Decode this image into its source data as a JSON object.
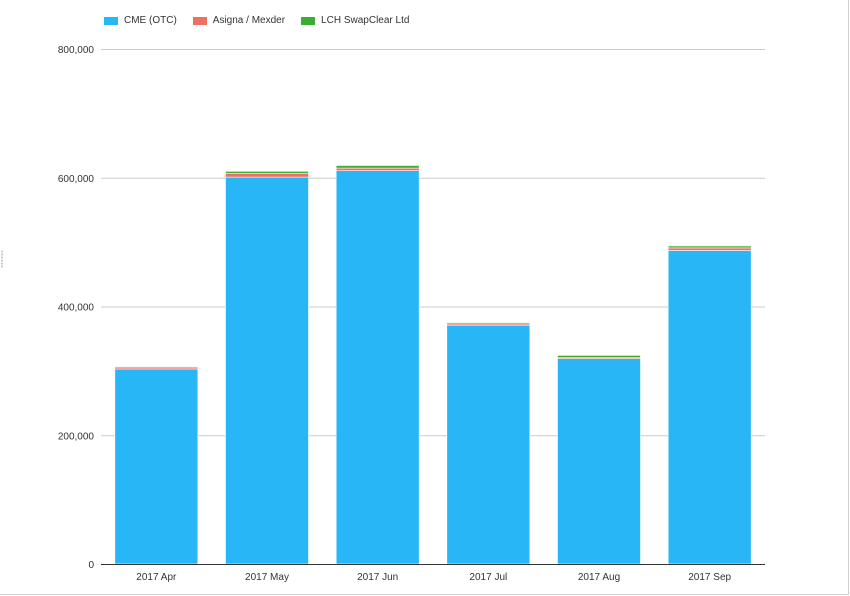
{
  "chart_data": {
    "type": "bar",
    "stacked": true,
    "categories": [
      "2017 Apr",
      "2017 May",
      "2017 Jun",
      "2017 Jul",
      "2017 Aug",
      "2017 Sep"
    ],
    "series": [
      {
        "name": "CME (OTC)",
        "color": "#29b6f6",
        "values": [
          303000,
          601000,
          611000,
          371000,
          319000,
          487000
        ]
      },
      {
        "name": "Asigna / Mexder",
        "color": "#ef6f65",
        "values": [
          3000,
          6000,
          4000,
          2000,
          1500,
          4000
        ]
      },
      {
        "name": "LCH SwapClear Ltd",
        "color": "#3cad33",
        "values": [
          1000,
          3000,
          4000,
          2000,
          3500,
          3000
        ]
      }
    ],
    "ylim": [
      0,
      800000
    ],
    "yticks": [
      0,
      200000,
      400000,
      600000,
      800000
    ],
    "ytick_labels": [
      "0",
      "200,000",
      "400,000",
      "600,000",
      "800,000"
    ],
    "title": "",
    "xlabel": "",
    "ylabel": "",
    "grid": true,
    "legend_position": "top-left"
  }
}
